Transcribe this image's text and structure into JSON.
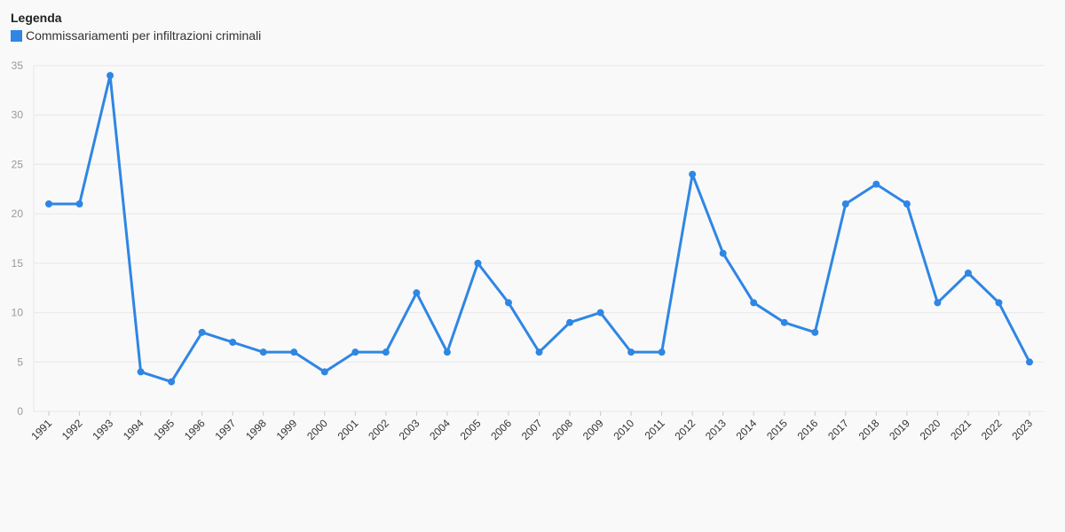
{
  "legend": {
    "title": "Legenda",
    "series_label": "Commissariamenti per infiltrazioni criminali"
  },
  "colors": {
    "series": "#2f86e4"
  },
  "chart_data": {
    "type": "line",
    "title": "",
    "xlabel": "",
    "ylabel": "",
    "ylim": [
      0,
      35
    ],
    "yticks": [
      0,
      5,
      10,
      15,
      20,
      25,
      30,
      35
    ],
    "grid": true,
    "legend_position": "top-left",
    "categories": [
      "1991",
      "1992",
      "1993",
      "1994",
      "1995",
      "1996",
      "1997",
      "1998",
      "1999",
      "2000",
      "2001",
      "2002",
      "2003",
      "2004",
      "2005",
      "2006",
      "2007",
      "2008",
      "2009",
      "2010",
      "2011",
      "2012",
      "2013",
      "2014",
      "2015",
      "2016",
      "2017",
      "2018",
      "2019",
      "2020",
      "2021",
      "2022",
      "2023"
    ],
    "series": [
      {
        "name": "Commissariamenti per infiltrazioni criminali",
        "values": [
          21,
          21,
          34,
          4,
          3,
          8,
          7,
          6,
          6,
          4,
          6,
          6,
          12,
          6,
          15,
          11,
          6,
          9,
          10,
          6,
          6,
          24,
          16,
          11,
          9,
          8,
          21,
          23,
          21,
          11,
          14,
          11,
          5
        ]
      }
    ]
  }
}
